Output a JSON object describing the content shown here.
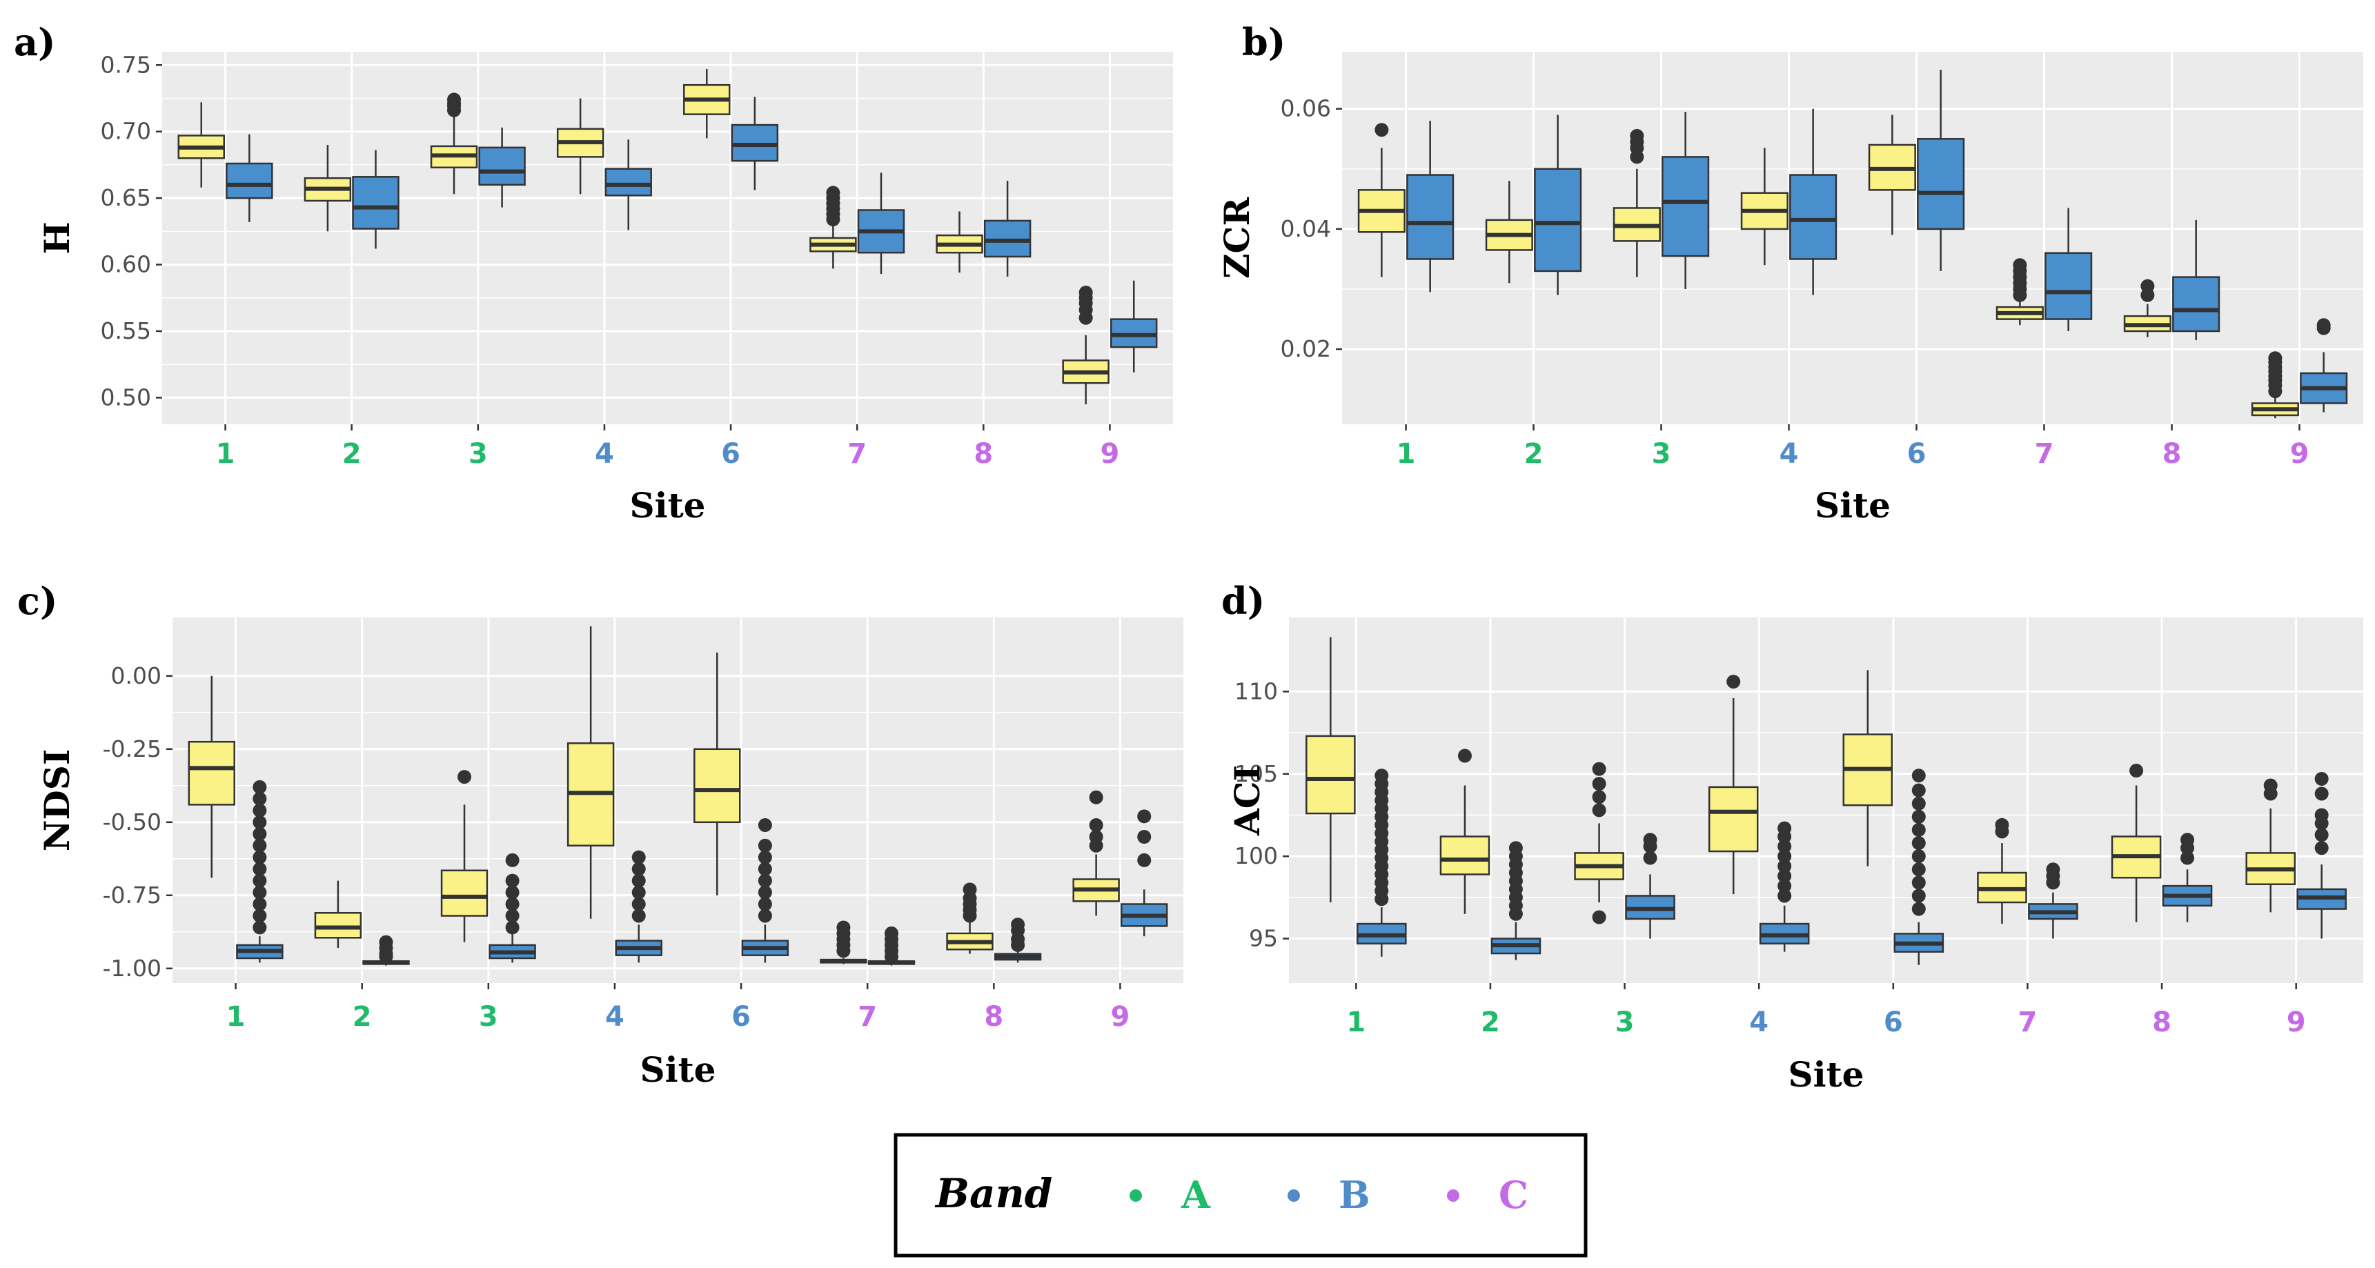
{
  "colors": {
    "panel_bg": "#ebebeb",
    "grid": "#ffffff",
    "fill_A_band": "#fbf287",
    "fill_B_band": "#4a8fcd",
    "outline": "#333333",
    "site_A": "#1fbb6a",
    "site_B": "#4f8cc9",
    "site_C": "#c46ae6"
  },
  "legend": {
    "title": "Band",
    "items": [
      {
        "label": "A",
        "color": "#1fbb6a"
      },
      {
        "label": "B",
        "color": "#4f8cc9"
      },
      {
        "label": "C",
        "color": "#c46ae6"
      }
    ]
  },
  "chart_data": [
    {
      "id": "a",
      "panel_label": "a)",
      "type": "box",
      "xlabel": "Site",
      "ylabel": "H",
      "ylim": [
        0.48,
        0.76
      ],
      "yticks": [
        0.5,
        0.55,
        0.6,
        0.65,
        0.7,
        0.75
      ],
      "ytick_labels": [
        "0.50",
        "0.55",
        "0.60",
        "0.65",
        "0.70",
        "0.75"
      ],
      "categories": [
        "1",
        "2",
        "3",
        "4",
        "6",
        "7",
        "8",
        "9"
      ],
      "category_band": [
        "A",
        "A",
        "A",
        "B",
        "B",
        "C",
        "C",
        "C"
      ],
      "series": [
        {
          "name": "yellow",
          "boxes": [
            [
              0.658,
              0.68,
              0.688,
              0.697,
              0.722,
              []
            ],
            [
              0.625,
              0.648,
              0.657,
              0.665,
              0.69,
              []
            ],
            [
              0.653,
              0.673,
              0.682,
              0.689,
              0.713,
              [
                0.716,
                0.719,
                0.721,
                0.724
              ]
            ],
            [
              0.653,
              0.681,
              0.692,
              0.702,
              0.725,
              []
            ],
            [
              0.695,
              0.713,
              0.724,
              0.735,
              0.747,
              []
            ],
            [
              0.597,
              0.61,
              0.615,
              0.62,
              0.63,
              [
                0.634,
                0.638,
                0.642,
                0.646,
                0.65,
                0.654
              ]
            ],
            [
              0.594,
              0.609,
              0.615,
              0.622,
              0.64,
              []
            ],
            [
              0.495,
              0.511,
              0.519,
              0.528,
              0.547,
              [
                0.56,
                0.566,
                0.571,
                0.575,
                0.579
              ]
            ]
          ]
        },
        {
          "name": "blue",
          "boxes": [
            [
              0.632,
              0.65,
              0.66,
              0.676,
              0.698,
              []
            ],
            [
              0.612,
              0.627,
              0.643,
              0.666,
              0.686,
              []
            ],
            [
              0.643,
              0.66,
              0.67,
              0.688,
              0.703,
              []
            ],
            [
              0.626,
              0.652,
              0.66,
              0.672,
              0.694,
              []
            ],
            [
              0.656,
              0.678,
              0.69,
              0.705,
              0.726,
              []
            ],
            [
              0.593,
              0.609,
              0.625,
              0.641,
              0.669,
              []
            ],
            [
              0.591,
              0.606,
              0.618,
              0.633,
              0.663,
              []
            ],
            [
              0.519,
              0.538,
              0.547,
              0.559,
              0.588,
              []
            ]
          ]
        }
      ]
    },
    {
      "id": "b",
      "panel_label": "b)",
      "type": "box",
      "xlabel": "Site",
      "ylabel": "ZCR",
      "ylim": [
        0.0075,
        0.0695
      ],
      "yticks": [
        0.02,
        0.04,
        0.06
      ],
      "ytick_labels": [
        "0.02",
        "0.04",
        "0.06"
      ],
      "categories": [
        "1",
        "2",
        "3",
        "4",
        "6",
        "7",
        "8",
        "9"
      ],
      "category_band": [
        "A",
        "A",
        "A",
        "B",
        "B",
        "C",
        "C",
        "C"
      ],
      "series": [
        {
          "name": "yellow",
          "boxes": [
            [
              0.032,
              0.0395,
              0.043,
              0.0465,
              0.0535,
              [
                0.0565
              ]
            ],
            [
              0.031,
              0.0365,
              0.039,
              0.0415,
              0.048,
              []
            ],
            [
              0.032,
              0.038,
              0.0405,
              0.0435,
              0.05,
              [
                0.052,
                0.0535,
                0.0545,
                0.0555
              ]
            ],
            [
              0.034,
              0.04,
              0.043,
              0.046,
              0.0535,
              []
            ],
            [
              0.039,
              0.0465,
              0.05,
              0.054,
              0.059,
              []
            ],
            [
              0.024,
              0.025,
              0.026,
              0.027,
              0.0285,
              [
                0.029,
                0.03,
                0.031,
                0.032,
                0.033,
                0.034
              ]
            ],
            [
              0.022,
              0.023,
              0.024,
              0.0255,
              0.0275,
              [
                0.029,
                0.0305
              ]
            ],
            [
              0.0085,
              0.009,
              0.01,
              0.011,
              0.0125,
              [
                0.013,
                0.014,
                0.0148,
                0.0155,
                0.0163,
                0.017,
                0.0178,
                0.0185
              ]
            ]
          ]
        },
        {
          "name": "blue",
          "boxes": [
            [
              0.0295,
              0.035,
              0.041,
              0.049,
              0.058,
              []
            ],
            [
              0.029,
              0.033,
              0.041,
              0.05,
              0.059,
              []
            ],
            [
              0.03,
              0.0355,
              0.0445,
              0.052,
              0.0595,
              []
            ],
            [
              0.029,
              0.035,
              0.0415,
              0.049,
              0.06,
              []
            ],
            [
              0.033,
              0.04,
              0.046,
              0.055,
              0.0665,
              []
            ],
            [
              0.023,
              0.025,
              0.0295,
              0.036,
              0.0435,
              []
            ],
            [
              0.0215,
              0.023,
              0.0265,
              0.032,
              0.0415,
              []
            ],
            [
              0.0095,
              0.011,
              0.0135,
              0.016,
              0.0195,
              [
                0.0235,
                0.024
              ]
            ]
          ]
        }
      ]
    },
    {
      "id": "c",
      "panel_label": "c)",
      "type": "box",
      "xlabel": "Site",
      "ylabel": "NDSI",
      "ylim": [
        -1.05,
        0.2
      ],
      "yticks": [
        -1.0,
        -0.75,
        -0.5,
        -0.25,
        0.0
      ],
      "ytick_labels": [
        "-1.00",
        "-0.75",
        "-0.50",
        "-0.25",
        "0.00"
      ],
      "categories": [
        "1",
        "2",
        "3",
        "4",
        "6",
        "7",
        "8",
        "9"
      ],
      "category_band": [
        "A",
        "A",
        "A",
        "B",
        "B",
        "C",
        "C",
        "C"
      ],
      "series": [
        {
          "name": "yellow",
          "boxes": [
            [
              -0.69,
              -0.44,
              -0.315,
              -0.225,
              0.0,
              []
            ],
            [
              -0.93,
              -0.895,
              -0.86,
              -0.81,
              -0.7,
              []
            ],
            [
              -0.91,
              -0.82,
              -0.755,
              -0.665,
              -0.44,
              [
                -0.345
              ]
            ],
            [
              -0.83,
              -0.58,
              -0.4,
              -0.23,
              0.17,
              []
            ],
            [
              -0.75,
              -0.5,
              -0.39,
              -0.25,
              0.08,
              []
            ],
            [
              -0.985,
              -0.98,
              -0.975,
              -0.97,
              -0.965,
              [
                -0.94,
                -0.92,
                -0.9,
                -0.88,
                -0.86
              ]
            ],
            [
              -0.95,
              -0.935,
              -0.91,
              -0.88,
              -0.84,
              [
                -0.82,
                -0.8,
                -0.78,
                -0.76,
                -0.73
              ]
            ],
            [
              -0.82,
              -0.77,
              -0.73,
              -0.695,
              -0.61,
              [
                -0.58,
                -0.55,
                -0.51,
                -0.415
              ]
            ]
          ]
        },
        {
          "name": "blue",
          "boxes": [
            [
              -0.98,
              -0.965,
              -0.94,
              -0.92,
              -0.89,
              [
                -0.86,
                -0.82,
                -0.78,
                -0.74,
                -0.7,
                -0.66,
                -0.62,
                -0.58,
                -0.54,
                -0.5,
                -0.46,
                -0.42,
                -0.38
              ]
            ],
            [
              -0.99,
              -0.985,
              -0.98,
              -0.975,
              -0.97,
              [
                -0.96,
                -0.95,
                -0.93,
                -0.91
              ]
            ],
            [
              -0.98,
              -0.965,
              -0.945,
              -0.92,
              -0.88,
              [
                -0.86,
                -0.82,
                -0.78,
                -0.74,
                -0.7,
                -0.63
              ]
            ],
            [
              -0.98,
              -0.955,
              -0.93,
              -0.905,
              -0.85,
              [
                -0.82,
                -0.78,
                -0.74,
                -0.7,
                -0.66,
                -0.62
              ]
            ],
            [
              -0.98,
              -0.955,
              -0.93,
              -0.905,
              -0.85,
              [
                -0.82,
                -0.78,
                -0.74,
                -0.7,
                -0.66,
                -0.62,
                -0.58,
                -0.51
              ]
            ],
            [
              -0.99,
              -0.985,
              -0.98,
              -0.975,
              -0.97,
              [
                -0.96,
                -0.94,
                -0.92,
                -0.9,
                -0.88
              ]
            ],
            [
              -0.98,
              -0.97,
              -0.96,
              -0.95,
              -0.94,
              [
                -0.92,
                -0.9,
                -0.87,
                -0.85
              ]
            ],
            [
              -0.89,
              -0.855,
              -0.82,
              -0.78,
              -0.73,
              [
                -0.63,
                -0.55,
                -0.48
              ]
            ]
          ]
        }
      ]
    },
    {
      "id": "d",
      "panel_label": "d)",
      "type": "box",
      "xlabel": "Site",
      "ylabel": "ACI",
      "ylim": [
        92.3,
        114.5
      ],
      "yticks": [
        95,
        100,
        105,
        110
      ],
      "ytick_labels": [
        "95",
        "100",
        "105",
        "110"
      ],
      "categories": [
        "1",
        "2",
        "3",
        "4",
        "6",
        "7",
        "8",
        "9"
      ],
      "category_band": [
        "A",
        "A",
        "A",
        "B",
        "B",
        "C",
        "C",
        "C"
      ],
      "series": [
        {
          "name": "yellow",
          "boxes": [
            [
              97.2,
              102.6,
              104.7,
              107.3,
              113.3,
              []
            ],
            [
              96.5,
              98.9,
              99.8,
              101.2,
              104.3,
              [
                106.1
              ]
            ],
            [
              97.2,
              98.6,
              99.4,
              100.2,
              102.0,
              [
                96.3,
                102.8,
                103.6,
                104.4,
                105.3
              ]
            ],
            [
              97.7,
              100.3,
              102.7,
              104.2,
              109.6,
              [
                110.6
              ]
            ],
            [
              99.4,
              103.1,
              105.3,
              107.4,
              111.3,
              []
            ],
            [
              95.9,
              97.2,
              98.0,
              99.0,
              100.8,
              [
                101.5,
                101.9
              ]
            ],
            [
              96.0,
              98.7,
              100.0,
              101.2,
              104.3,
              [
                105.2
              ]
            ],
            [
              96.6,
              98.3,
              99.2,
              100.2,
              102.9,
              [
                103.8,
                104.3
              ]
            ]
          ]
        },
        {
          "name": "blue",
          "boxes": [
            [
              93.9,
              94.7,
              95.2,
              95.9,
              96.9,
              [
                97.4,
                97.9,
                98.4,
                98.9,
                99.4,
                99.9,
                100.4,
                100.9,
                101.4,
                101.9,
                102.4,
                102.9,
                103.4,
                103.9,
                104.4,
                104.9
              ]
            ],
            [
              93.7,
              94.1,
              94.6,
              95.0,
              96.0,
              [
                96.5,
                97.0,
                97.5,
                98.0,
                98.5,
                99.0,
                99.5,
                100.0,
                100.5
              ]
            ],
            [
              95.0,
              96.2,
              96.8,
              97.6,
              98.9,
              [
                99.9,
                100.6,
                101.0
              ]
            ],
            [
              94.2,
              94.7,
              95.2,
              95.9,
              97.0,
              [
                97.6,
                98.2,
                98.8,
                99.4,
                100.0,
                100.6,
                101.2,
                101.7
              ]
            ],
            [
              93.4,
              94.2,
              94.7,
              95.3,
              96.0,
              [
                96.8,
                97.6,
                98.4,
                99.2,
                100.0,
                100.8,
                101.6,
                102.4,
                103.2,
                104.0,
                104.9
              ]
            ],
            [
              95.0,
              96.2,
              96.6,
              97.1,
              97.8,
              [
                98.4,
                98.8,
                99.2
              ]
            ],
            [
              96.0,
              97.0,
              97.6,
              98.2,
              99.2,
              [
                99.9,
                100.5,
                101.0
              ]
            ],
            [
              95.0,
              96.8,
              97.5,
              98.0,
              99.5,
              [
                100.5,
                101.3,
                102.0,
                102.5,
                103.8,
                104.7
              ]
            ]
          ]
        }
      ]
    }
  ]
}
